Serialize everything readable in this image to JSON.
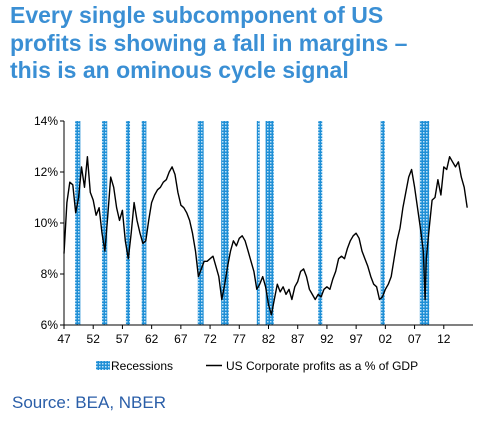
{
  "title_lines": [
    "Every single subcomponent of US",
    "profits is showing a fall in margins –",
    "this is an ominous cycle signal"
  ],
  "source": "Source: BEA, NBER",
  "colors": {
    "title": "#3a8fd4",
    "source": "#2a5ea8",
    "recession": "#1f8fd6",
    "line": "#000000"
  },
  "chart_data": {
    "type": "line",
    "title": "",
    "xlabel": "",
    "ylabel": "",
    "xlim": [
      1947,
      2017
    ],
    "ylim": [
      6,
      14
    ],
    "x_tick_values": [
      1947,
      1952,
      1957,
      1962,
      1967,
      1972,
      1977,
      1982,
      1987,
      1992,
      1997,
      2002,
      2007,
      2012
    ],
    "x_tick_labels": [
      "47",
      "52",
      "57",
      "62",
      "67",
      "72",
      "77",
      "82",
      "87",
      "92",
      "97",
      "02",
      "07",
      "12"
    ],
    "y_tick_values": [
      6,
      8,
      10,
      12,
      14
    ],
    "y_tick_labels": [
      "6%",
      "8%",
      "10%",
      "12%",
      "14%"
    ],
    "grid": false,
    "legend": {
      "position": "bottom",
      "items": [
        {
          "label": "Recessions",
          "style": "hatched-bar"
        },
        {
          "label": "US Corporate profits as a % of GDP",
          "style": "line"
        }
      ]
    },
    "recessions": [
      [
        1948.9,
        1949.8
      ],
      [
        1953.5,
        1954.4
      ],
      [
        1957.6,
        1958.3
      ],
      [
        1960.3,
        1961.1
      ],
      [
        1969.9,
        1970.9
      ],
      [
        1973.9,
        1975.2
      ],
      [
        1980.0,
        1980.5
      ],
      [
        1981.5,
        1982.9
      ],
      [
        1990.5,
        1991.2
      ],
      [
        2001.2,
        2001.9
      ],
      [
        2007.9,
        2009.5
      ]
    ],
    "series": [
      {
        "name": "US Corporate profits as a % of GDP",
        "x": [
          1947.0,
          1947.5,
          1948.0,
          1948.5,
          1949.0,
          1949.5,
          1950.0,
          1950.5,
          1951.0,
          1951.5,
          1952.0,
          1952.5,
          1953.0,
          1953.5,
          1954.0,
          1954.5,
          1955.0,
          1955.5,
          1956.0,
          1956.5,
          1957.0,
          1957.5,
          1958.0,
          1958.5,
          1959.0,
          1959.5,
          1960.0,
          1960.5,
          1961.0,
          1961.5,
          1962.0,
          1962.5,
          1963.0,
          1963.5,
          1964.0,
          1964.5,
          1965.0,
          1965.5,
          1966.0,
          1966.5,
          1967.0,
          1967.5,
          1968.0,
          1968.5,
          1969.0,
          1969.5,
          1970.0,
          1970.5,
          1971.0,
          1971.5,
          1972.0,
          1972.5,
          1973.0,
          1973.5,
          1974.0,
          1974.5,
          1975.0,
          1975.5,
          1976.0,
          1976.5,
          1977.0,
          1977.5,
          1978.0,
          1978.5,
          1979.0,
          1979.5,
          1980.0,
          1980.5,
          1981.0,
          1981.5,
          1982.0,
          1982.5,
          1983.0,
          1983.5,
          1984.0,
          1984.5,
          1985.0,
          1985.5,
          1986.0,
          1986.5,
          1987.0,
          1987.5,
          1988.0,
          1988.5,
          1989.0,
          1989.5,
          1990.0,
          1990.5,
          1991.0,
          1991.5,
          1992.0,
          1992.5,
          1993.0,
          1993.5,
          1994.0,
          1994.5,
          1995.0,
          1995.5,
          1996.0,
          1996.5,
          1997.0,
          1997.5,
          1998.0,
          1998.5,
          1999.0,
          1999.5,
          2000.0,
          2000.5,
          2001.0,
          2001.5,
          2002.0,
          2002.5,
          2003.0,
          2003.5,
          2004.0,
          2004.5,
          2005.0,
          2005.5,
          2006.0,
          2006.5,
          2007.0,
          2007.5,
          2008.0,
          2008.5,
          2008.8,
          2009.0,
          2009.5,
          2010.0,
          2010.5,
          2011.0,
          2011.5,
          2012.0,
          2012.5,
          2013.0,
          2013.5,
          2014.0,
          2014.5,
          2015.0,
          2015.5,
          2016.0
        ],
        "values": [
          8.8,
          10.8,
          11.6,
          11.5,
          10.4,
          11.0,
          12.2,
          11.4,
          12.6,
          11.2,
          10.9,
          10.3,
          10.6,
          9.6,
          8.9,
          10.3,
          11.8,
          11.4,
          10.6,
          10.1,
          10.5,
          9.3,
          8.6,
          9.6,
          10.8,
          10.1,
          9.6,
          9.2,
          9.3,
          10.1,
          10.8,
          11.1,
          11.3,
          11.4,
          11.6,
          11.7,
          12.0,
          12.2,
          11.9,
          11.2,
          10.7,
          10.6,
          10.4,
          10.1,
          9.6,
          8.9,
          7.9,
          8.2,
          8.5,
          8.5,
          8.6,
          8.7,
          8.3,
          7.9,
          7.0,
          7.6,
          8.3,
          8.9,
          9.3,
          9.1,
          9.4,
          9.5,
          9.3,
          8.9,
          8.5,
          8.1,
          7.4,
          7.6,
          7.9,
          7.5,
          6.8,
          6.4,
          7.0,
          7.6,
          7.3,
          7.5,
          7.2,
          7.4,
          7.0,
          7.5,
          7.7,
          8.1,
          8.2,
          7.9,
          7.4,
          7.2,
          7.0,
          7.2,
          7.1,
          7.4,
          7.5,
          7.4,
          7.8,
          8.1,
          8.6,
          8.7,
          8.6,
          9.0,
          9.3,
          9.5,
          9.6,
          9.4,
          8.9,
          8.6,
          8.3,
          7.9,
          7.6,
          7.5,
          7.0,
          7.1,
          7.4,
          7.6,
          7.9,
          8.6,
          9.3,
          9.8,
          10.6,
          11.2,
          11.8,
          12.1,
          11.4,
          10.6,
          9.8,
          8.9,
          7.0,
          8.6,
          9.8,
          10.9,
          11.0,
          11.7,
          11.1,
          12.2,
          12.1,
          12.6,
          12.4,
          12.2,
          12.4,
          11.8,
          11.4,
          10.6
        ]
      }
    ]
  }
}
